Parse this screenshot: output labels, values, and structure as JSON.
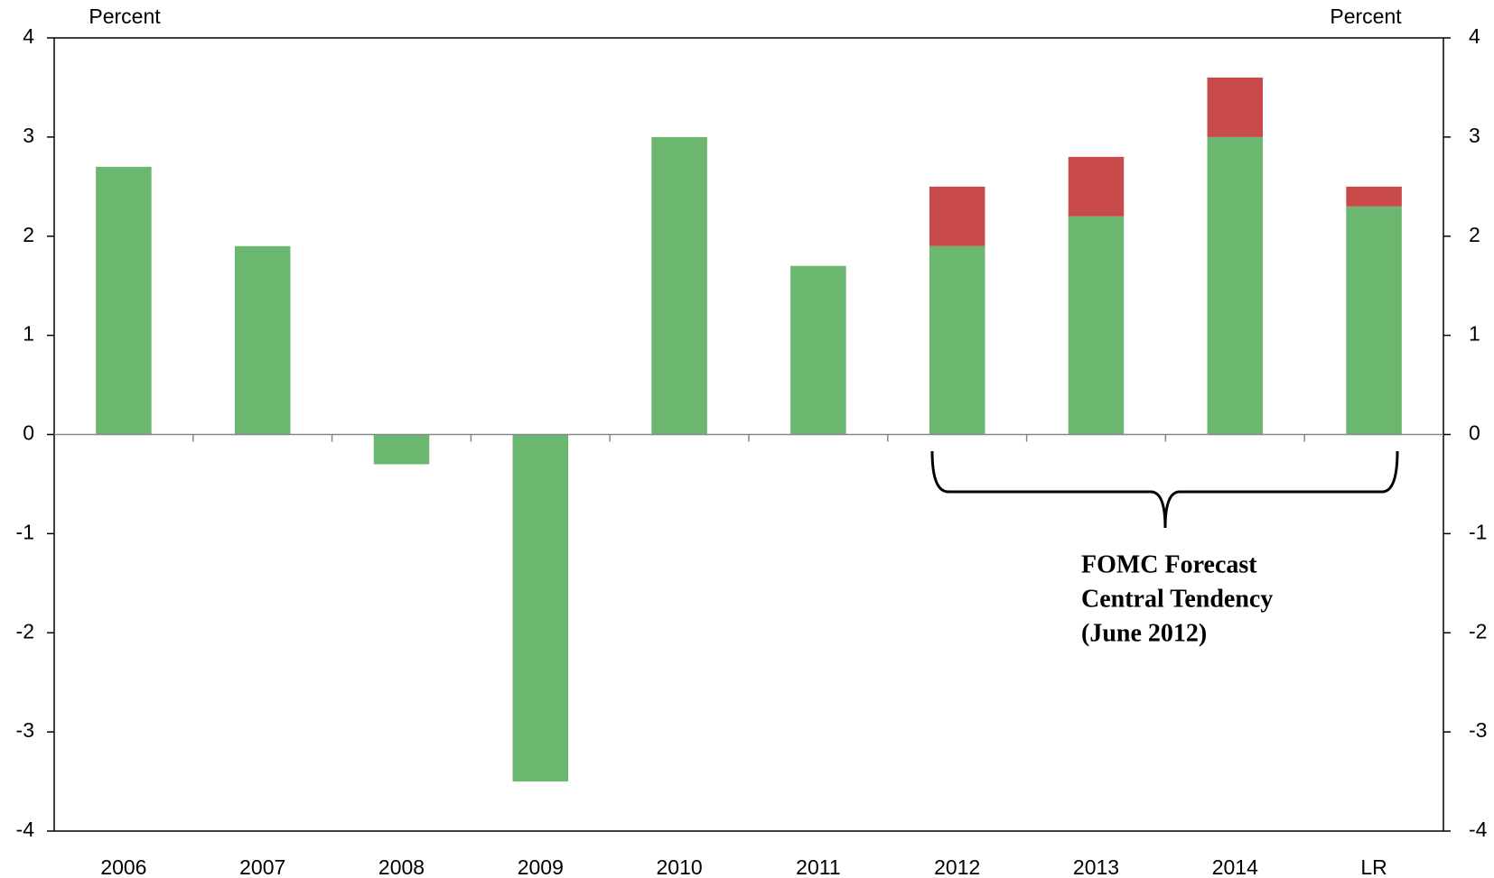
{
  "chart_data": {
    "type": "bar",
    "y_label": "Percent",
    "y2_label": "Percent",
    "categories": [
      "2006",
      "2007",
      "2008",
      "2009",
      "2010",
      "2011",
      "2012",
      "2013",
      "2014",
      "LR"
    ],
    "stacked": true,
    "series": [
      {
        "color": "#6bb76f",
        "values": [
          2.7,
          1.9,
          -0.3,
          -3.5,
          3.0,
          1.7,
          1.9,
          2.2,
          3.0,
          2.3
        ]
      },
      {
        "color": "#c94a4a",
        "values": [
          null,
          null,
          null,
          null,
          null,
          null,
          0.6,
          0.6,
          0.6,
          0.2
        ]
      }
    ],
    "ylim": [
      -4,
      4
    ],
    "yticks": [
      -4,
      -3,
      -2,
      -1,
      0,
      1,
      2,
      3,
      4
    ],
    "y2lim": [
      -4,
      4
    ],
    "y2ticks": [
      -4,
      -3,
      -2,
      -1,
      0,
      1,
      2,
      3,
      4
    ],
    "annotation": [
      "FOMC Forecast",
      "Central Tendency",
      "(June 2012)"
    ]
  }
}
